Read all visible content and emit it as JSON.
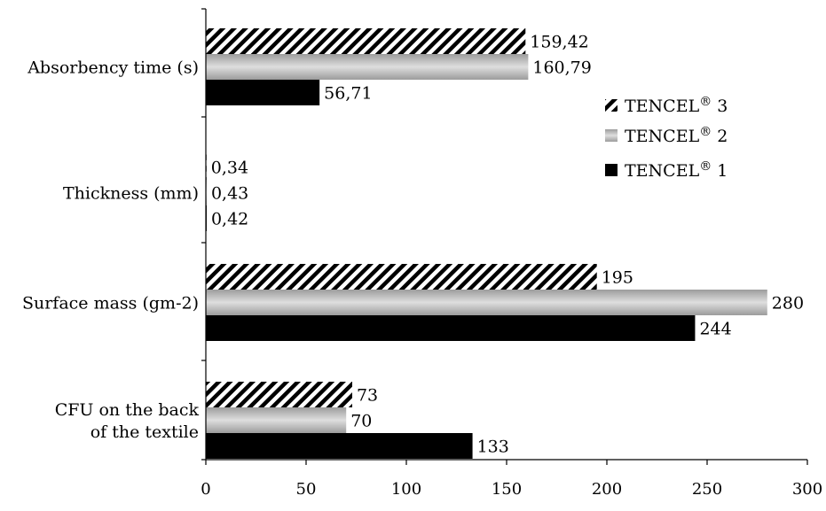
{
  "chart_data": {
    "type": "bar",
    "orientation": "horizontal",
    "categories": [
      [
        "Absorbency time (s)"
      ],
      [
        "Thickness (mm)"
      ],
      [
        "Surface mass (gm-2)"
      ],
      [
        "CFU on the back",
        "of the textile"
      ]
    ],
    "series": [
      {
        "name": "TENCEL® 3",
        "values": [
          159.42,
          0.34,
          195,
          73
        ],
        "labels": [
          "159,42",
          "0,34",
          "195",
          "73"
        ],
        "pattern": "hatched"
      },
      {
        "name": "TENCEL® 2",
        "values": [
          160.79,
          0.43,
          280,
          70
        ],
        "labels": [
          "160,79",
          "0,43",
          "280",
          "70"
        ],
        "pattern": "gray-gradient"
      },
      {
        "name": "TENCEL® 1",
        "values": [
          56.71,
          0.42,
          244,
          133
        ],
        "labels": [
          "56,71",
          "0,42",
          "244",
          "133"
        ],
        "pattern": "solid-black"
      }
    ],
    "xlim": [
      0,
      300
    ],
    "xticks": [
      "0",
      "50",
      "100",
      "150",
      "200",
      "250",
      "300"
    ],
    "grid": false,
    "legend_position": "right",
    "legend_order": [
      0,
      1,
      2
    ],
    "colors": {
      "solid": "#000000",
      "gray_light": "#d8d8d8",
      "gray_dark": "#9a9a9a",
      "hatch": "#000000"
    }
  }
}
